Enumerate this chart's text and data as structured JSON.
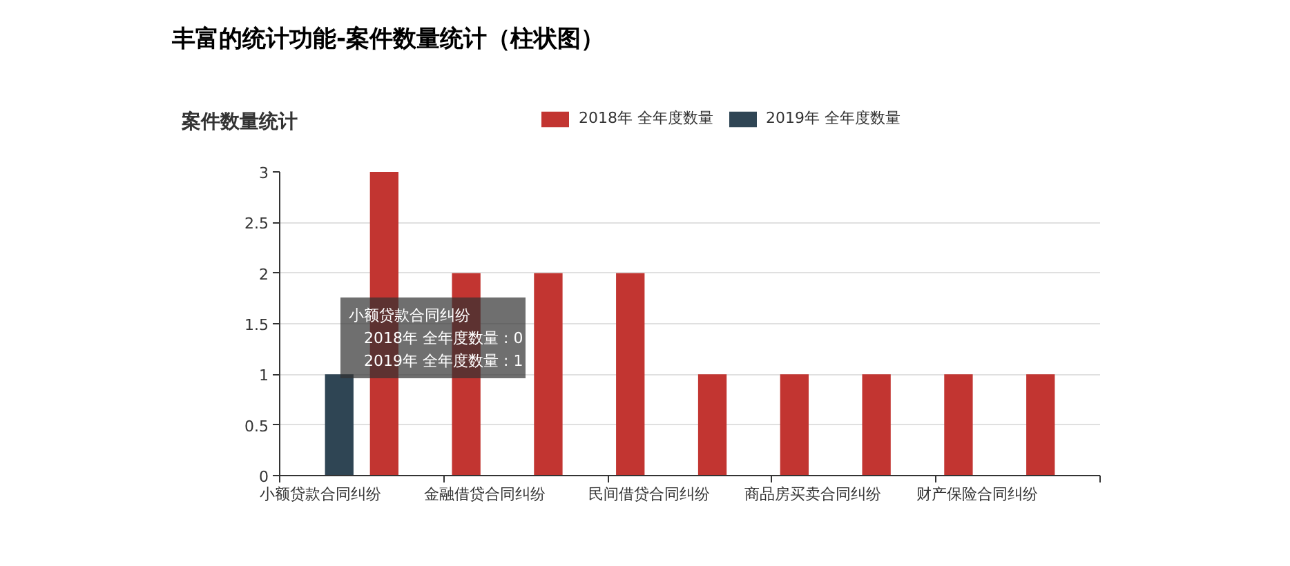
{
  "chart_data": {
    "type": "bar",
    "title": "丰富的统计功能-案件数量统计（柱状图）",
    "subtitle": "案件数量统计",
    "categories": [
      "小额贷款合同纠纷",
      null,
      "金融借贷合同纠纷",
      null,
      "民间借贷合同纠纷",
      null,
      "商品房买卖合同纠纷",
      null,
      "财产保险合同纠纷",
      null
    ],
    "series": [
      {
        "name": "2018年 全年度数量",
        "color": "#c23531",
        "values": [
          0,
          3,
          2,
          2,
          2,
          1,
          1,
          1,
          1,
          1
        ]
      },
      {
        "name": "2019年 全年度数量",
        "color": "#2f4554",
        "values": [
          1,
          0,
          0,
          0,
          0,
          0,
          0,
          0,
          0,
          0
        ]
      }
    ],
    "ylim": [
      0,
      3
    ],
    "yticks": [
      0,
      0.5,
      1,
      1.5,
      2,
      2.5,
      3
    ],
    "grid": "y",
    "legend": "top",
    "annotations": [
      "小额贷款合同纠纷\n2018年 全年度数量 : 0\n2019年 全年度数量 : 1"
    ]
  }
}
